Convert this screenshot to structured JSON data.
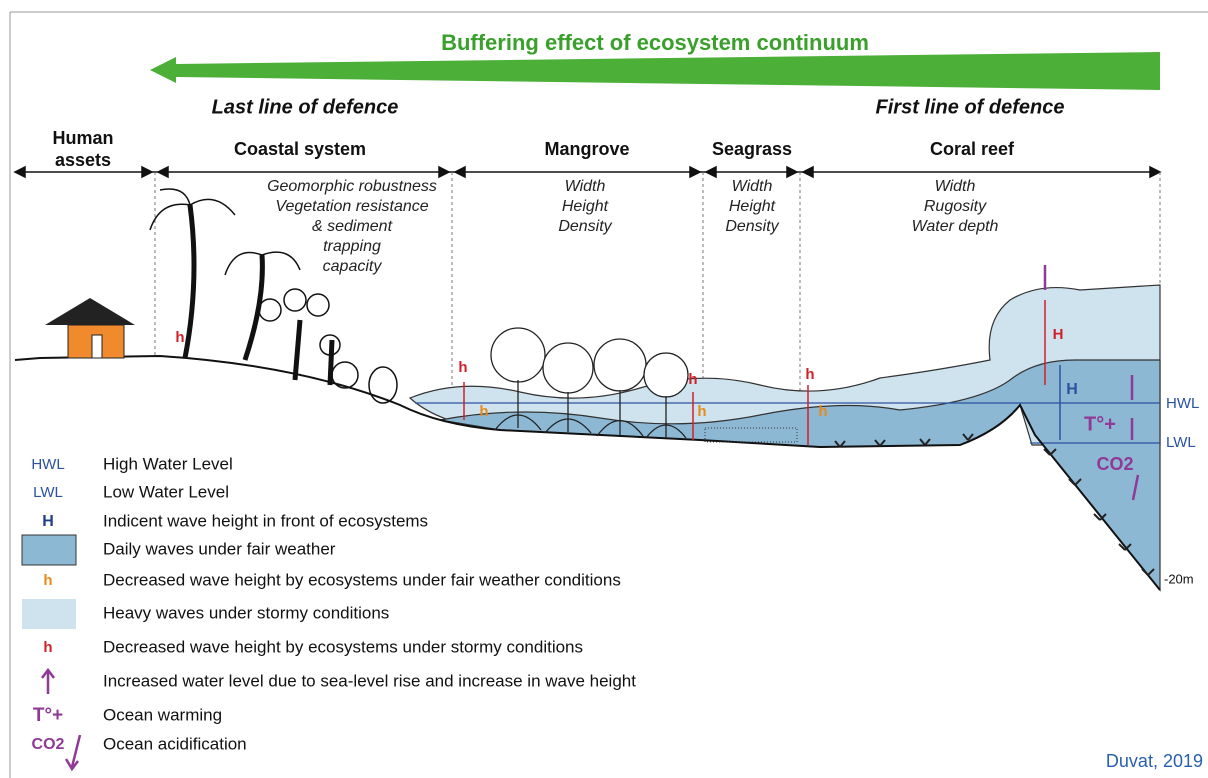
{
  "title": "Buffering effect of ecosystem continuum",
  "defence": {
    "last": "Last line of defence",
    "first": "First line of defence"
  },
  "zones": [
    {
      "name": [
        "Human",
        "assets"
      ]
    },
    {
      "name": [
        "Coastal system"
      ],
      "criteria": [
        "Geomorphic robustness",
        "Vegetation resistance",
        "& sediment",
        "trapping",
        "capacity"
      ]
    },
    {
      "name": [
        "Mangrove"
      ],
      "criteria": [
        "Width",
        "Height",
        "Density"
      ]
    },
    {
      "name": [
        "Seagrass"
      ],
      "criteria": [
        "Width",
        "Height",
        "Density"
      ]
    },
    {
      "name": [
        "Coral reef"
      ],
      "criteria": [
        "Width",
        "Rugosity",
        "Water depth"
      ]
    }
  ],
  "diagram_labels": {
    "hwl": "HWL",
    "lwl": "LWL",
    "depth": "-20m",
    "storm_height": "H",
    "fair_height": "H",
    "warming": "T°+",
    "acidification": "CO2",
    "storm_reduced": [
      "h",
      "h",
      "h",
      "h"
    ],
    "fair_reduced": [
      "h",
      "h",
      "h"
    ]
  },
  "legend": [
    {
      "symbol": "HWL",
      "text": "High Water Level"
    },
    {
      "symbol": "LWL",
      "text": "Low Water Level"
    },
    {
      "symbol": "H",
      "text": "Indicent wave height in front of ecosystems"
    },
    {
      "text": "Daily waves under fair weather"
    },
    {
      "symbol": "h",
      "text": "Decreased wave height by ecosystems under fair weather conditions"
    },
    {
      "text": "Heavy waves under stormy conditions"
    },
    {
      "symbol": "h",
      "text": "Decreased wave height by ecosystems under stormy conditions"
    },
    {
      "text": "Increased water level due to sea-level rise and increase in wave height"
    },
    {
      "symbol": "T°+",
      "text": "Ocean warming"
    },
    {
      "symbol": "CO2",
      "text": "Ocean acidification"
    }
  ],
  "credit": "Duvat, 2019"
}
